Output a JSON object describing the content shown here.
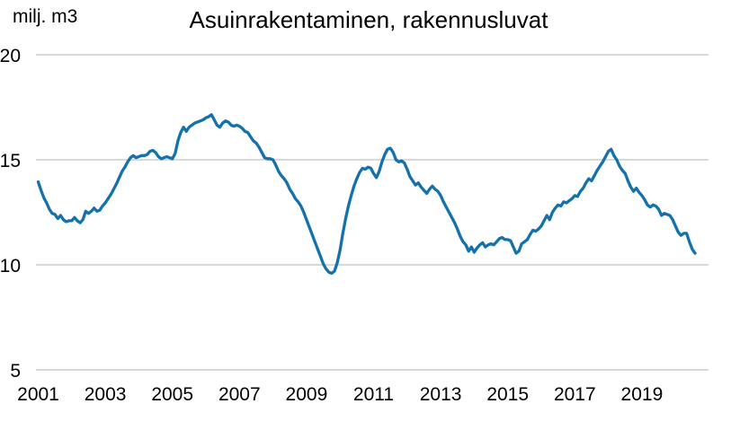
{
  "chart_data": {
    "type": "line",
    "title": "Asuinrakentaminen, rakennusluvat",
    "ylabel": "milj. m3",
    "xlabel": "",
    "ylim": [
      5,
      20
    ],
    "y_ticks": [
      20,
      15,
      10,
      5
    ],
    "x_tick_labels": [
      "2001",
      "2003",
      "2005",
      "2007",
      "2009",
      "2011",
      "2013",
      "2015",
      "2017",
      "2019"
    ],
    "xlim": [
      2001,
      2020.6
    ],
    "grid": "horizontal-only",
    "legend": "none",
    "line_color": "#1571ab",
    "gridline_color": "#d9d9d9",
    "text_color": "#000000",
    "series": [
      {
        "name": "Asuinrakentaminen, rakennusluvat",
        "unit": "milj. m3",
        "start_year": 2001,
        "frequency": "monthly",
        "values": [
          13.95,
          13.55,
          13.2,
          12.95,
          12.65,
          12.45,
          12.4,
          12.2,
          12.35,
          12.15,
          12.05,
          12.1,
          12.1,
          12.25,
          12.1,
          12.0,
          12.15,
          12.55,
          12.45,
          12.55,
          12.7,
          12.55,
          12.6,
          12.8,
          12.95,
          13.15,
          13.35,
          13.6,
          13.85,
          14.15,
          14.45,
          14.65,
          14.9,
          15.1,
          15.2,
          15.1,
          15.15,
          15.2,
          15.2,
          15.25,
          15.4,
          15.45,
          15.35,
          15.15,
          15.05,
          15.1,
          15.15,
          15.1,
          15.05,
          15.3,
          15.9,
          16.3,
          16.55,
          16.35,
          16.55,
          16.65,
          16.75,
          16.8,
          16.85,
          16.9,
          17.0,
          17.05,
          17.15,
          16.9,
          16.65,
          16.55,
          16.75,
          16.85,
          16.8,
          16.65,
          16.6,
          16.65,
          16.6,
          16.5,
          16.35,
          16.3,
          16.1,
          15.9,
          15.8,
          15.6,
          15.35,
          15.1,
          15.05,
          15.05,
          15.0,
          14.75,
          14.45,
          14.25,
          14.1,
          13.9,
          13.6,
          13.4,
          13.15,
          13.0,
          12.8,
          12.5,
          12.15,
          11.8,
          11.45,
          11.1,
          10.75,
          10.4,
          10.05,
          9.8,
          9.65,
          9.6,
          9.7,
          10.1,
          10.7,
          11.5,
          12.2,
          12.8,
          13.3,
          13.75,
          14.1,
          14.4,
          14.6,
          14.55,
          14.65,
          14.6,
          14.35,
          14.15,
          14.45,
          14.9,
          15.25,
          15.5,
          15.55,
          15.35,
          15.0,
          14.9,
          14.95,
          14.85,
          14.55,
          14.2,
          14.0,
          13.8,
          13.9,
          13.7,
          13.55,
          13.4,
          13.6,
          13.75,
          13.6,
          13.5,
          13.3,
          13.0,
          12.75,
          12.5,
          12.25,
          12.0,
          11.7,
          11.35,
          11.1,
          10.95,
          10.65,
          10.85,
          10.6,
          10.8,
          10.95,
          11.05,
          10.85,
          10.95,
          11.0,
          10.95,
          11.1,
          11.25,
          11.3,
          11.2,
          11.2,
          11.15,
          10.85,
          10.55,
          10.65,
          11.0,
          11.1,
          11.2,
          11.45,
          11.65,
          11.6,
          11.7,
          11.85,
          12.1,
          12.35,
          12.15,
          12.5,
          12.7,
          12.85,
          12.8,
          13.0,
          12.95,
          13.05,
          13.15,
          13.3,
          13.25,
          13.5,
          13.65,
          13.9,
          14.1,
          14.0,
          14.25,
          14.5,
          14.7,
          14.9,
          15.15,
          15.4,
          15.5,
          15.2,
          15.0,
          14.7,
          14.5,
          14.35,
          14.0,
          13.7,
          13.5,
          13.65,
          13.45,
          13.3,
          13.1,
          12.85,
          12.75,
          12.85,
          12.8,
          12.65,
          12.35,
          12.45,
          12.4,
          12.35,
          12.15,
          11.85,
          11.55,
          11.4,
          11.5,
          11.5,
          11.1,
          10.75,
          10.55
        ]
      }
    ]
  }
}
